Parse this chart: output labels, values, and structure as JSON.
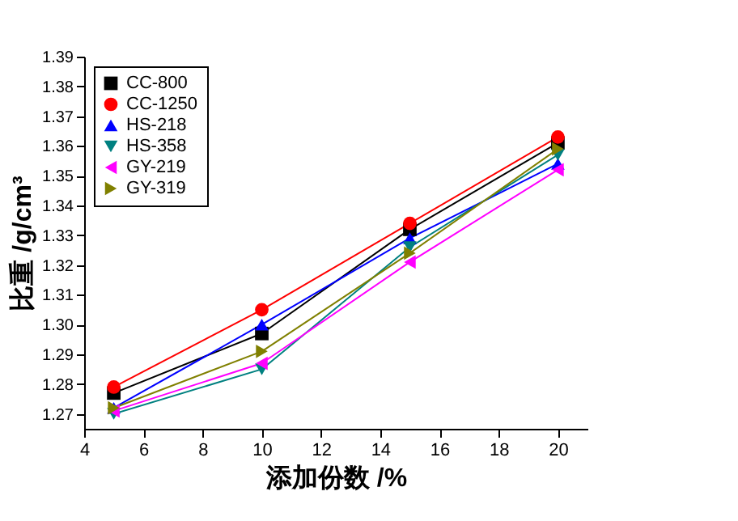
{
  "chart_data": {
    "type": "line",
    "xlabel": "添加份数 /%",
    "ylabel": "比重 /g/cm³",
    "x": [
      5,
      10,
      15,
      20
    ],
    "series": [
      {
        "name": "CC-800",
        "color": "#000000",
        "marker": "square",
        "values": [
          1.277,
          1.297,
          1.332,
          1.361
        ]
      },
      {
        "name": "CC-1250",
        "color": "#ff0000",
        "marker": "circle",
        "values": [
          1.279,
          1.305,
          1.334,
          1.363
        ]
      },
      {
        "name": "HS-218",
        "color": "#0000ff",
        "marker": "triangle-up",
        "values": [
          1.272,
          1.3,
          1.329,
          1.354
        ]
      },
      {
        "name": "HS-358",
        "color": "#008080",
        "marker": "triangle-down",
        "values": [
          1.27,
          1.285,
          1.326,
          1.357
        ]
      },
      {
        "name": "GY-219",
        "color": "#ff00ff",
        "marker": "triangle-left",
        "values": [
          1.271,
          1.287,
          1.321,
          1.352
        ]
      },
      {
        "name": "GY-319",
        "color": "#808000",
        "marker": "triangle-right",
        "values": [
          1.272,
          1.291,
          1.324,
          1.359
        ]
      }
    ],
    "xlim": [
      4,
      21
    ],
    "xticks": [
      4,
      6,
      8,
      10,
      12,
      14,
      16,
      18,
      20
    ],
    "ylim": [
      1.265,
      1.39
    ],
    "yticks": [
      1.27,
      1.28,
      1.29,
      {
        "value": 1.3,
        "label": "1.30"
      },
      1.31,
      1.32,
      1.33,
      1.34,
      1.35,
      1.36,
      1.37,
      1.38,
      1.39
    ],
    "grid": false,
    "legend": "top left",
    "line_style": "solid"
  }
}
